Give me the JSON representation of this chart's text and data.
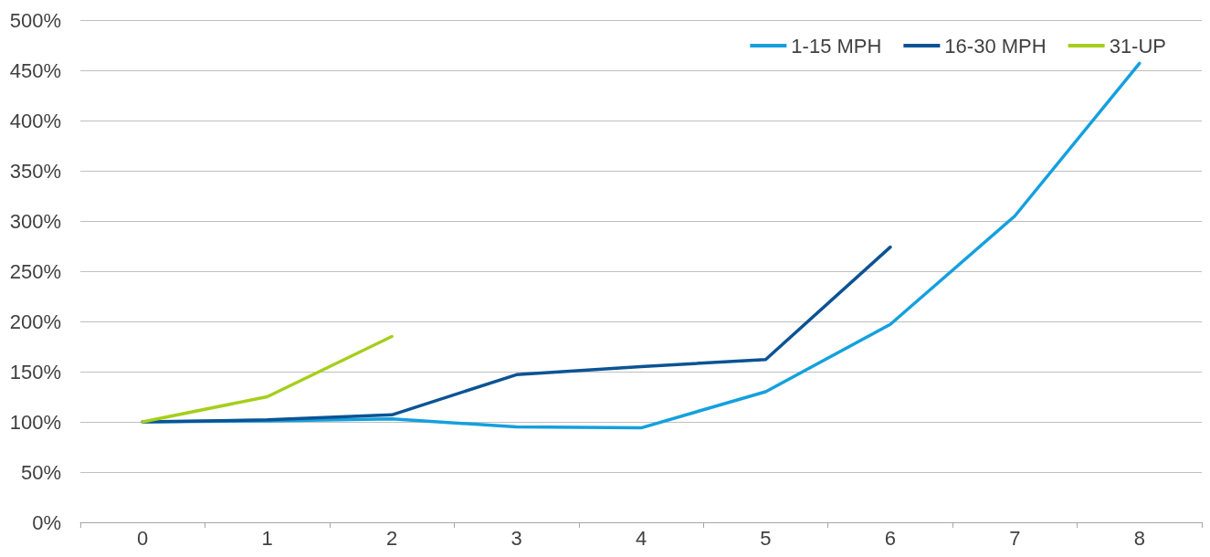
{
  "chart_data": {
    "type": "line",
    "categories": [
      "0",
      "1",
      "2",
      "3",
      "4",
      "5",
      "6",
      "7",
      "8"
    ],
    "series": [
      {
        "name": "1-15 MPH",
        "color": "#14a0de",
        "values": [
          100,
          101,
          103,
          95,
          94,
          130,
          197,
          305,
          457
        ]
      },
      {
        "name": "16-30 MPH",
        "color": "#0b5394",
        "values": [
          100,
          102,
          107,
          147,
          155,
          162,
          274,
          null,
          null
        ]
      },
      {
        "name": "31-UP",
        "color": "#a6ce1c",
        "values": [
          100,
          125,
          185,
          null,
          null,
          null,
          null,
          null,
          null
        ]
      }
    ],
    "ylim": [
      0,
      500
    ],
    "yticks": [
      {
        "value": 0,
        "label": "0%"
      },
      {
        "value": 50,
        "label": "50%"
      },
      {
        "value": 100,
        "label": "100%"
      },
      {
        "value": 150,
        "label": "150%"
      },
      {
        "value": 200,
        "label": "200%"
      },
      {
        "value": 250,
        "label": "250%"
      },
      {
        "value": 300,
        "label": "300%"
      },
      {
        "value": 350,
        "label": "350%"
      },
      {
        "value": 400,
        "label": "400%"
      },
      {
        "value": 450,
        "label": "450%"
      },
      {
        "value": 500,
        "label": "500%"
      }
    ],
    "grid": "y",
    "legend": "top right",
    "marker": "none",
    "line_style": "solid"
  }
}
